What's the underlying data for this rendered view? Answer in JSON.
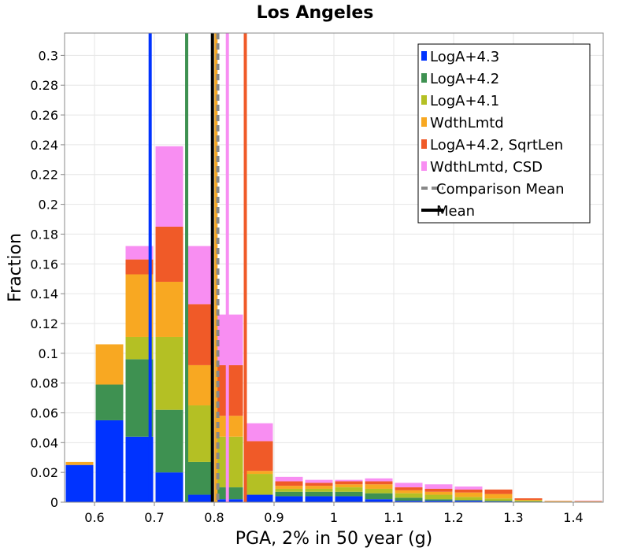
{
  "chart_data": {
    "type": "bar",
    "stacked": true,
    "title": "Los Angeles",
    "xlabel": "PGA, 2% in 50 year (g)",
    "ylabel": "Fraction",
    "xlim": [
      0.55,
      1.45
    ],
    "ylim": [
      0,
      0.315
    ],
    "bin_width": 0.05,
    "grid": true,
    "legend_position": "top-right",
    "xticks": [
      "0.6",
      "0.7",
      "0.8",
      "0.9",
      "1",
      "1.1",
      "1.2",
      "1.3",
      "1.4"
    ],
    "xtick_values": [
      0.6,
      0.7,
      0.8,
      0.9,
      1.0,
      1.1,
      1.2,
      1.3,
      1.4
    ],
    "yticks": [
      "0",
      "0.02",
      "0.04",
      "0.06",
      "0.08",
      "0.1",
      "0.12",
      "0.14",
      "0.16",
      "0.18",
      "0.2",
      "0.22",
      "0.24",
      "0.26",
      "0.28",
      "0.3"
    ],
    "ytick_values": [
      0,
      0.02,
      0.04,
      0.06,
      0.08,
      0.1,
      0.12,
      0.14,
      0.16,
      0.18,
      0.2,
      0.22,
      0.24,
      0.26,
      0.28,
      0.3
    ],
    "bin_centers": [
      0.575,
      0.625,
      0.675,
      0.725,
      0.775,
      0.825,
      0.875,
      0.925,
      0.975,
      1.025,
      1.075,
      1.125,
      1.175,
      1.225,
      1.275,
      1.325,
      1.375,
      1.425
    ],
    "series": [
      {
        "name": "LogA+4.3",
        "color": "#0033ff",
        "values": [
          0.025,
          0.055,
          0.044,
          0.02,
          0.005,
          0.002,
          0.005,
          0.004,
          0.004,
          0.004,
          0.002,
          0.001,
          0.001,
          0.001,
          0.0005,
          0.0003,
          0.0001,
          0.0001
        ]
      },
      {
        "name": "LogA+4.2",
        "color": "#3e9151",
        "values": [
          0.0,
          0.024,
          0.052,
          0.042,
          0.022,
          0.008,
          0.0,
          0.003,
          0.003,
          0.003,
          0.004,
          0.002,
          0.001,
          0.0005,
          0.0005,
          0.0003,
          0.0001,
          0.0001
        ]
      },
      {
        "name": "LogA+4.1",
        "color": "#b4c024",
        "values": [
          0.0,
          0.0,
          0.015,
          0.049,
          0.038,
          0.034,
          0.014,
          0.002,
          0.002,
          0.003,
          0.003,
          0.003,
          0.003,
          0.002,
          0.0015,
          0.0005,
          0.0002,
          0.0002
        ]
      },
      {
        "name": "WdthLmtd",
        "color": "#f8a822",
        "values": [
          0.002,
          0.027,
          0.042,
          0.037,
          0.027,
          0.014,
          0.002,
          0.002,
          0.002,
          0.002,
          0.003,
          0.002,
          0.002,
          0.003,
          0.003,
          0.0005,
          0.0003,
          0.0002
        ]
      },
      {
        "name": "LogA+4.2, SqrtLen",
        "color": "#f05a28",
        "values": [
          0.0,
          0.0,
          0.01,
          0.037,
          0.041,
          0.034,
          0.02,
          0.003,
          0.002,
          0.002,
          0.002,
          0.002,
          0.002,
          0.002,
          0.003,
          0.001,
          0.0002,
          0.0002
        ]
      },
      {
        "name": "WdthLmtd, CSD",
        "color": "#f88ef2",
        "values": [
          0.0,
          0.0,
          0.009,
          0.054,
          0.039,
          0.034,
          0.012,
          0.003,
          0.002,
          0.001,
          0.002,
          0.003,
          0.003,
          0.002,
          0.0,
          0.0,
          0.0,
          0.0002
        ]
      }
    ],
    "vertical_lines": [
      {
        "x": 0.693,
        "color": "#0033ff",
        "style": "solid"
      },
      {
        "x": 0.754,
        "color": "#3e9151",
        "style": "solid"
      },
      {
        "x": 0.803,
        "color": "#f8a822",
        "style": "solid"
      },
      {
        "x": 0.822,
        "color": "#f88ef2",
        "style": "solid"
      },
      {
        "x": 0.852,
        "color": "#f05a28",
        "style": "solid"
      },
      {
        "x": 0.806,
        "color": "#888888",
        "style": "dashed",
        "name": "Comparison Mean"
      },
      {
        "x": 0.797,
        "color": "#000000",
        "style": "solid",
        "name": "Mean"
      }
    ],
    "legend": [
      {
        "label": "LogA+4.3",
        "color": "#0033ff",
        "kind": "box"
      },
      {
        "label": "LogA+4.2",
        "color": "#3e9151",
        "kind": "box"
      },
      {
        "label": "LogA+4.1",
        "color": "#b4c024",
        "kind": "box"
      },
      {
        "label": "WdthLmtd",
        "color": "#f8a822",
        "kind": "box"
      },
      {
        "label": "LogA+4.2, SqrtLen",
        "color": "#f05a28",
        "kind": "box"
      },
      {
        "label": "WdthLmtd, CSD",
        "color": "#f88ef2",
        "kind": "box"
      },
      {
        "label": "Comparison Mean",
        "color": "#888888",
        "kind": "dashed"
      },
      {
        "label": "Mean",
        "color": "#000000",
        "kind": "line"
      }
    ]
  }
}
